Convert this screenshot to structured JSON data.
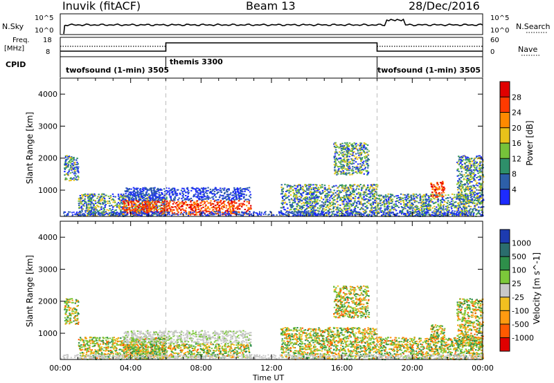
{
  "header": {
    "station": "Inuvik (fitACF)",
    "beam": "Beam 13",
    "date": "28/Dec/2016"
  },
  "top_panels": {
    "nsky_label": "N.Sky",
    "nsearch_label": "N.Search",
    "nsky_ticks": [
      "10^5",
      "10^0"
    ],
    "nsearch_ticks": [
      "10^5",
      "10^0"
    ],
    "freq_label_line1": "Freq.",
    "freq_label_line2": "[MHz]",
    "freq_ticks": [
      "18",
      "8"
    ],
    "nave_label": "Nave",
    "nave_ticks": [
      "60",
      "0"
    ],
    "cpid_label": "CPID",
    "modes": [
      {
        "name": "twofsound (1-min) 3505",
        "start_hour": 0
      },
      {
        "name": "themis 3300",
        "start_hour": 6
      },
      {
        "name": "twofsound (1-min) 3505",
        "start_hour": 18
      }
    ]
  },
  "chart_data": [
    {
      "type": "heatmap",
      "quantity": "Power",
      "ylabel": "Slant Range [km]",
      "yticks": [
        1000,
        2000,
        3000,
        4000
      ],
      "ylim": [
        180,
        4500
      ],
      "xlim": [
        0,
        24
      ],
      "colorbar_label": "Power [dB]",
      "colorbar_ticks": [
        "4",
        "8",
        "12",
        "16",
        "20",
        "24",
        "28"
      ],
      "colorbar_colors": [
        "#1d2bff",
        "#2d5fa8",
        "#2e8f6a",
        "#76c23a",
        "#e8c21a",
        "#ff8a00",
        "#ff3a00",
        "#e00000"
      ],
      "regions": [
        {
          "x": [
            0.2,
            1.0
          ],
          "y": [
            1300,
            2100
          ],
          "level": "mixed"
        },
        {
          "x": [
            1.0,
            6.0
          ],
          "y": [
            200,
            900
          ],
          "level": "mixed"
        },
        {
          "x": [
            3.5,
            10.8
          ],
          "y": [
            250,
            700
          ],
          "level": "high"
        },
        {
          "x": [
            3.5,
            10.8
          ],
          "y": [
            700,
            1100
          ],
          "level": "low"
        },
        {
          "x": [
            12.5,
            18.0
          ],
          "y": [
            200,
            1200
          ],
          "level": "mixed"
        },
        {
          "x": [
            15.5,
            17.5
          ],
          "y": [
            1500,
            2500
          ],
          "level": "mixed"
        },
        {
          "x": [
            18.0,
            24.0
          ],
          "y": [
            200,
            900
          ],
          "level": "mixed"
        },
        {
          "x": [
            21.0,
            21.8
          ],
          "y": [
            800,
            1300
          ],
          "level": "high"
        },
        {
          "x": [
            22.5,
            24.0
          ],
          "y": [
            600,
            2100
          ],
          "level": "mixed"
        }
      ]
    },
    {
      "type": "heatmap",
      "quantity": "Velocity",
      "ylabel": "Slant Range [km]",
      "xlabel": "Time UT",
      "xticks": [
        "00:00",
        "04:00",
        "08:00",
        "12:00",
        "16:00",
        "20:00",
        "00:00"
      ],
      "yticks": [
        1000,
        2000,
        3000,
        4000
      ],
      "ylim": [
        180,
        4500
      ],
      "xlim": [
        0,
        24
      ],
      "colorbar_label": "Velocity [m s^-1]",
      "colorbar_ticks": [
        "1000",
        "500",
        "100",
        "25",
        "-25",
        "-100",
        "-500",
        "-1000"
      ],
      "colorbar_colors": [
        "#1d3bb0",
        "#2b6d6d",
        "#2e8f4a",
        "#7cc83a",
        "#c8c8c8",
        "#f2c020",
        "#ff9a10",
        "#ff5a00",
        "#e00000"
      ],
      "regions": [
        {
          "x": [
            0.2,
            1.0
          ],
          "y": [
            1300,
            2100
          ],
          "level": "mixed"
        },
        {
          "x": [
            1.0,
            6.0
          ],
          "y": [
            200,
            900
          ],
          "level": "mixed"
        },
        {
          "x": [
            3.5,
            10.8
          ],
          "y": [
            250,
            700
          ],
          "level": "mixed"
        },
        {
          "x": [
            3.5,
            10.8
          ],
          "y": [
            700,
            1100
          ],
          "level": "gray"
        },
        {
          "x": [
            12.5,
            18.0
          ],
          "y": [
            200,
            1200
          ],
          "level": "mixed"
        },
        {
          "x": [
            15.5,
            17.5
          ],
          "y": [
            1500,
            2500
          ],
          "level": "mixed"
        },
        {
          "x": [
            18.0,
            24.0
          ],
          "y": [
            200,
            900
          ],
          "level": "mixed"
        },
        {
          "x": [
            21.0,
            21.8
          ],
          "y": [
            800,
            1300
          ],
          "level": "mixed"
        },
        {
          "x": [
            22.5,
            24.0
          ],
          "y": [
            600,
            2100
          ],
          "level": "mixed"
        }
      ]
    }
  ]
}
